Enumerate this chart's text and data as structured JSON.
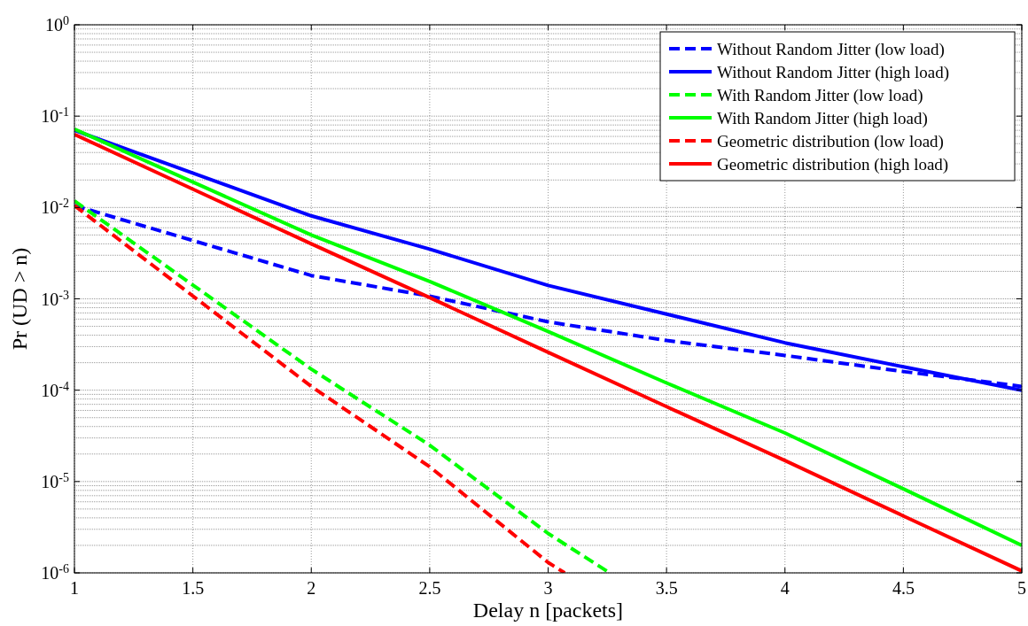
{
  "chart_data": {
    "type": "line",
    "xlabel": "Delay n [packets]",
    "ylabel": "Pr (UD > n)",
    "log": "y",
    "grid": true,
    "legend": "top right",
    "xlim": [
      1,
      5
    ],
    "xticks": [
      1,
      1.5,
      2,
      2.5,
      3,
      3.5,
      4,
      4.5,
      5
    ],
    "ylim": [
      1e-06,
      1
    ],
    "yticks": [
      {
        "value": 1e-06,
        "label": "10$^{-6}$"
      },
      {
        "value": 1e-05,
        "label": "10$^{-5}$"
      },
      {
        "value": 0.0001,
        "label": "10$^{-4}$"
      },
      {
        "value": 0.001,
        "label": "10$^{-3}$"
      },
      {
        "value": 0.01,
        "label": "10$^{-2}$"
      },
      {
        "value": 0.1,
        "label": "10$^{-1}$"
      },
      {
        "value": 1,
        "label": "10$^{0}$"
      }
    ],
    "series": [
      {
        "name": "Without Random Jitter (low load)",
        "color": "#0000ff",
        "line_style": "dashed",
        "x": [
          1,
          2,
          2.5,
          3,
          3.5,
          4,
          4.5,
          5
        ],
        "values": [
          0.0105,
          0.0018,
          0.00107,
          0.00056,
          0.00035,
          0.00024,
          0.00016,
          0.00011
        ]
      },
      {
        "name": "Without Random Jitter (high load)",
        "color": "#0000ff",
        "line_style": "solid",
        "x": [
          1,
          2,
          2.5,
          3,
          3.5,
          4,
          4.5,
          5
        ],
        "values": [
          0.07,
          0.0081,
          0.0035,
          0.0014,
          0.00068,
          0.00033,
          0.00018,
          0.0001
        ]
      },
      {
        "name": "With Random Jitter (low load)",
        "color": "#00ff00",
        "line_style": "dashed",
        "x": [
          1,
          2,
          2.5,
          3,
          3.26
        ],
        "values": [
          0.0118,
          0.00017,
          2.5e-05,
          2.7e-06,
          1e-06
        ]
      },
      {
        "name": "With Random Jitter (high load)",
        "color": "#00ff00",
        "line_style": "solid",
        "x": [
          1,
          2,
          2.5,
          3,
          3.5,
          4,
          4.5,
          5
        ],
        "values": [
          0.072,
          0.005,
          0.00155,
          0.00044,
          0.00012,
          3.4e-05,
          8.3e-06,
          2e-06
        ]
      },
      {
        "name": "Geometric distribution (low load)",
        "color": "#ff0000",
        "line_style": "dashed",
        "x": [
          1,
          2,
          2.5,
          3,
          3.07
        ],
        "values": [
          0.0105,
          0.00011,
          1.45e-05,
          1.3e-06,
          1e-06
        ]
      },
      {
        "name": "Geometric distribution (high load)",
        "color": "#ff0000",
        "line_style": "solid",
        "x": [
          1,
          2,
          2.5,
          3,
          3.5,
          4,
          4.5,
          5
        ],
        "values": [
          0.063,
          0.004,
          0.00103,
          0.00026,
          6.6e-05,
          1.7e-05,
          4.2e-06,
          1.05e-06
        ]
      }
    ]
  }
}
